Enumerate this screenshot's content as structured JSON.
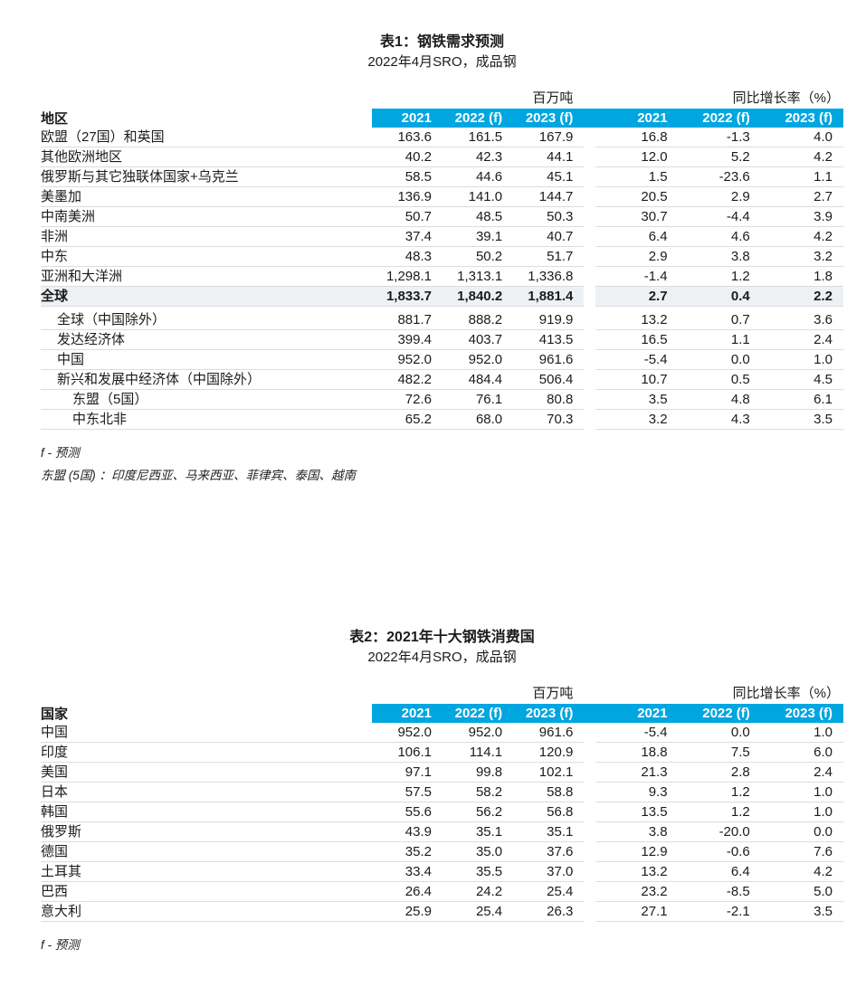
{
  "colors": {
    "accent": "#00A6E0",
    "divider": "#D6DEE5",
    "row_highlight": "#EEF1F4"
  },
  "table1": {
    "title": "表1：钢铁需求预测",
    "subtitle": "2022年4月SRO，成品钢",
    "row_header": "地区",
    "group1_header": "百万吨",
    "group2_header": "同比增长率（%）",
    "col_headers": [
      "2021",
      "2022 (f)",
      "2023 (f)",
      "2021",
      "2022 (f)",
      "2023 (f)"
    ],
    "rows": [
      {
        "label": "欧盟（27国）和英国",
        "indent": 0,
        "values": [
          "163.6",
          "161.5",
          "167.9",
          "16.8",
          "-1.3",
          "4.0"
        ]
      },
      {
        "label": "其他欧洲地区",
        "indent": 0,
        "values": [
          "40.2",
          "42.3",
          "44.1",
          "12.0",
          "5.2",
          "4.2"
        ]
      },
      {
        "label": "俄罗斯与其它独联体国家+乌克兰",
        "indent": 0,
        "values": [
          "58.5",
          "44.6",
          "45.1",
          "1.5",
          "-23.6",
          "1.1"
        ]
      },
      {
        "label": "美墨加",
        "indent": 0,
        "values": [
          "136.9",
          "141.0",
          "144.7",
          "20.5",
          "2.9",
          "2.7"
        ]
      },
      {
        "label": "中南美洲",
        "indent": 0,
        "values": [
          "50.7",
          "48.5",
          "50.3",
          "30.7",
          "-4.4",
          "3.9"
        ]
      },
      {
        "label": "非洲",
        "indent": 0,
        "values": [
          "37.4",
          "39.1",
          "40.7",
          "6.4",
          "4.6",
          "4.2"
        ]
      },
      {
        "label": "中东",
        "indent": 0,
        "values": [
          "48.3",
          "50.2",
          "51.7",
          "2.9",
          "3.8",
          "3.2"
        ]
      },
      {
        "label": "亚洲和大洋洲",
        "indent": 0,
        "values": [
          "1,298.1",
          "1,313.1",
          "1,336.8",
          "-1.4",
          "1.2",
          "1.8"
        ]
      },
      {
        "label": "全球",
        "indent": 0,
        "bold": true,
        "highlight": true,
        "values": [
          "1,833.7",
          "1,840.2",
          "1,881.4",
          "2.7",
          "0.4",
          "2.2"
        ]
      },
      {
        "spacer": true
      },
      {
        "label": "全球（中国除外）",
        "indent": 1,
        "values": [
          "881.7",
          "888.2",
          "919.9",
          "13.2",
          "0.7",
          "3.6"
        ]
      },
      {
        "label": "发达经济体",
        "indent": 1,
        "values": [
          "399.4",
          "403.7",
          "413.5",
          "16.5",
          "1.1",
          "2.4"
        ]
      },
      {
        "label": "中国",
        "indent": 1,
        "values": [
          "952.0",
          "952.0",
          "961.6",
          "-5.4",
          "0.0",
          "1.0"
        ]
      },
      {
        "label": "新兴和发展中经济体（中国除外）",
        "indent": 1,
        "values": [
          "482.2",
          "484.4",
          "506.4",
          "10.7",
          "0.5",
          "4.5"
        ]
      },
      {
        "label": "东盟（5国）",
        "indent": 2,
        "values": [
          "72.6",
          "76.1",
          "80.8",
          "3.5",
          "4.8",
          "6.1"
        ]
      },
      {
        "label": "中东北非",
        "indent": 2,
        "values": [
          "65.2",
          "68.0",
          "70.3",
          "3.2",
          "4.3",
          "3.5"
        ]
      }
    ],
    "footnotes": [
      "f - 预测",
      "东盟 (5国) ：印度尼西亚、马来西亚、菲律宾、泰国、越南"
    ]
  },
  "table2": {
    "title": "表2：2021年十大钢铁消费国",
    "subtitle": "2022年4月SRO，成品钢",
    "row_header": "国家",
    "group1_header": "百万吨",
    "group2_header": "同比增长率（%）",
    "col_headers": [
      "2021",
      "2022 (f)",
      "2023 (f)",
      "2021",
      "2022 (f)",
      "2023 (f)"
    ],
    "rows": [
      {
        "label": "中国",
        "indent": 0,
        "values": [
          "952.0",
          "952.0",
          "961.6",
          "-5.4",
          "0.0",
          "1.0"
        ]
      },
      {
        "label": "印度",
        "indent": 0,
        "values": [
          "106.1",
          "114.1",
          "120.9",
          "18.8",
          "7.5",
          "6.0"
        ]
      },
      {
        "label": "美国",
        "indent": 0,
        "values": [
          "97.1",
          "99.8",
          "102.1",
          "21.3",
          "2.8",
          "2.4"
        ]
      },
      {
        "label": "日本",
        "indent": 0,
        "values": [
          "57.5",
          "58.2",
          "58.8",
          "9.3",
          "1.2",
          "1.0"
        ]
      },
      {
        "label": "韩国",
        "indent": 0,
        "values": [
          "55.6",
          "56.2",
          "56.8",
          "13.5",
          "1.2",
          "1.0"
        ]
      },
      {
        "label": "俄罗斯",
        "indent": 0,
        "values": [
          "43.9",
          "35.1",
          "35.1",
          "3.8",
          "-20.0",
          "0.0"
        ]
      },
      {
        "label": "德国",
        "indent": 0,
        "values": [
          "35.2",
          "35.0",
          "37.6",
          "12.9",
          "-0.6",
          "7.6"
        ]
      },
      {
        "label": "土耳其",
        "indent": 0,
        "values": [
          "33.4",
          "35.5",
          "37.0",
          "13.2",
          "6.4",
          "4.2"
        ]
      },
      {
        "label": "巴西",
        "indent": 0,
        "values": [
          "26.4",
          "24.2",
          "25.4",
          "23.2",
          "-8.5",
          "5.0"
        ]
      },
      {
        "label": "意大利",
        "indent": 0,
        "values": [
          "25.9",
          "25.4",
          "26.3",
          "27.1",
          "-2.1",
          "3.5"
        ]
      }
    ],
    "footnotes": [
      "f - 预测"
    ]
  }
}
